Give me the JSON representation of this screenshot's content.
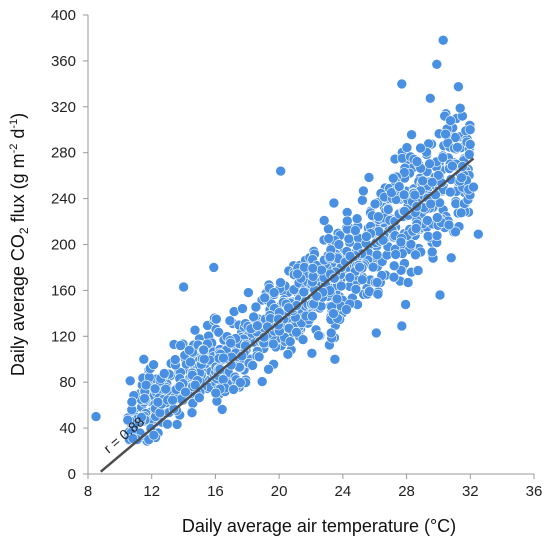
{
  "chart_data": {
    "type": "scatter",
    "xlabel": "Daily average air temperature (°C)",
    "ylabel_parts": {
      "pre": "Daily average CO",
      "sub": "2",
      "mid": " flux (g m",
      "sup1": "-2",
      "mid2": " d",
      "sup2": "-1",
      "post": ")"
    },
    "xlim": [
      8,
      36
    ],
    "ylim": [
      0,
      400
    ],
    "xticks": [
      "8",
      "12",
      "16",
      "20",
      "24",
      "28",
      "32",
      "36"
    ],
    "yticks": [
      "0",
      "40",
      "80",
      "120",
      "160",
      "200",
      "240",
      "280",
      "320",
      "360",
      "400"
    ],
    "grid": false,
    "colors": {
      "points": "#4a90e2",
      "trend": "#4d4d4d",
      "axis": "#9a9a9a"
    },
    "trendline": {
      "x": [
        8.8,
        32.2
      ],
      "y": [
        2,
        275
      ]
    },
    "annotation": "r = 0.88",
    "n_points": 1100,
    "point_clusters": [
      {
        "x_range": [
          10.5,
          16
        ],
        "y_center_rel": 20,
        "spread": 28
      },
      {
        "x_range": [
          16,
          22
        ],
        "y_center_rel": 5,
        "spread": 35
      },
      {
        "x_range": [
          22,
          27
        ],
        "y_center_rel": 0,
        "spread": 40
      },
      {
        "x_range": [
          27,
          32
        ],
        "y_center_rel": 0,
        "spread": 55
      }
    ],
    "highlight_points": [
      {
        "x": 8.5,
        "y": 50
      },
      {
        "x": 30.3,
        "y": 378
      },
      {
        "x": 29.9,
        "y": 357
      },
      {
        "x": 27.7,
        "y": 340
      },
      {
        "x": 20.1,
        "y": 264
      },
      {
        "x": 14.0,
        "y": 163
      },
      {
        "x": 15.9,
        "y": 180
      },
      {
        "x": 23.5,
        "y": 100
      },
      {
        "x": 26.1,
        "y": 123
      },
      {
        "x": 27.7,
        "y": 129
      },
      {
        "x": 30.1,
        "y": 156
      },
      {
        "x": 32.5,
        "y": 209
      },
      {
        "x": 32.2,
        "y": 250
      },
      {
        "x": 11.5,
        "y": 100
      },
      {
        "x": 10.5,
        "y": 47
      }
    ]
  }
}
